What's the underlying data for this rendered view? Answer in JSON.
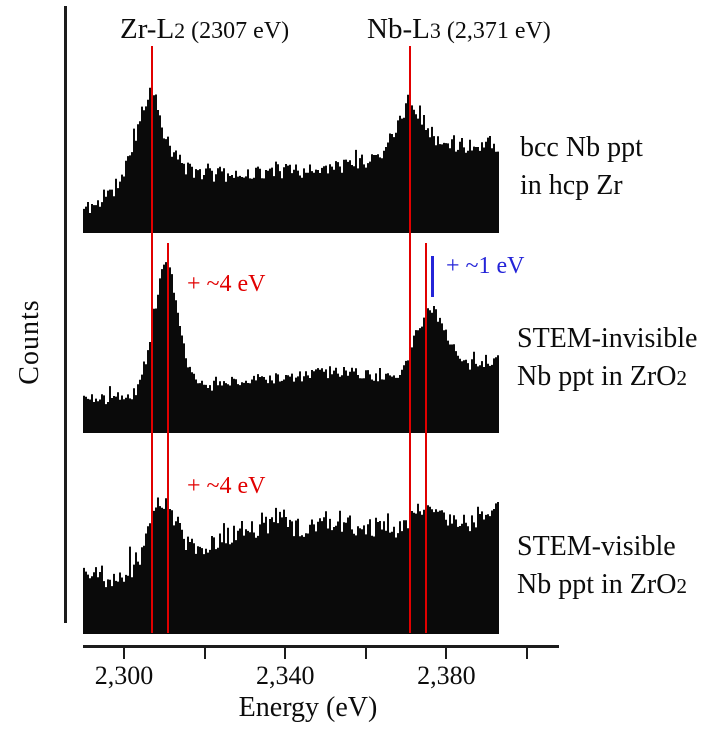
{
  "axis": {
    "y_label": "Counts",
    "x_label": "Energy (eV)"
  },
  "peak_titles": [
    {
      "main": "Zr-L",
      "sub": "2",
      "detail": " (2307 eV)"
    },
    {
      "main": "Nb-L",
      "sub": "3",
      "detail": " (2,371 eV)"
    }
  ],
  "panel_labels": [
    {
      "line1": "bcc Nb ppt",
      "line2": "in hcp Zr",
      "line2_sub": ""
    },
    {
      "line1": "STEM-invisible",
      "line2": "Nb ppt in ZrO",
      "line2_sub": "2"
    },
    {
      "line1": "STEM-visible",
      "line2": "Nb ppt in ZrO",
      "line2_sub": "2"
    }
  ],
  "annotations": [
    {
      "text": "+ ~4 eV",
      "color": "#e10000"
    },
    {
      "text": "+ ~1 eV",
      "color": "#2424d8"
    },
    {
      "text": "+ ~4 eV",
      "color": "#e10000"
    }
  ],
  "colors": {
    "spectrum_fill": "#0a0a0a",
    "reference_red": "#e10000",
    "annotation_blue": "#2424d8",
    "axis_black": "#1c1c1c"
  },
  "chart_data": {
    "type": "area",
    "title": "",
    "xlabel": "Energy (eV)",
    "ylabel": "Counts",
    "y_units": "arbitrary counts (unlabeled axis)",
    "x_range": [
      2290,
      2400
    ],
    "x_ticks": [
      2300,
      2320,
      2340,
      2360,
      2380,
      2400
    ],
    "x_tick_labels": [
      {
        "value": 2300,
        "label": "2,300"
      },
      {
        "value": 2340,
        "label": "2,340"
      },
      {
        "value": 2380,
        "label": "2,380"
      }
    ],
    "grid": false,
    "legend_position": "right-of-each-panel",
    "reference_lines": [
      {
        "id": "Zr-L2-reference",
        "energy_eV": 2307,
        "color": "#e10000",
        "extent": "full",
        "width": 2
      },
      {
        "id": "Zr-L2-shifted-4eV",
        "energy_eV": 2311,
        "color": "#e10000",
        "extent": "lower",
        "width": 2
      },
      {
        "id": "Nb-L3-reference",
        "energy_eV": 2371,
        "color": "#e10000",
        "extent": "full",
        "width": 2
      },
      {
        "id": "Nb-L3-shifted-4eV",
        "energy_eV": 2375,
        "color": "#e10000",
        "extent": "lower",
        "width": 2
      },
      {
        "id": "Nb-L3-observed-1eV",
        "energy_eV": 2376.5,
        "color": "#2424d8",
        "extent": "short",
        "width": 3
      }
    ],
    "series": [
      {
        "name": "bcc Nb ppt in hcp Zr",
        "peaks": [
          {
            "id": "Zr-L2",
            "eV": 2307
          },
          {
            "id": "Nb-L3",
            "eV": 2371
          }
        ],
        "noise_pct": 8,
        "seed": 11,
        "envelope_pct": [
          [
            2290,
            14
          ],
          [
            2292,
            16
          ],
          [
            2294,
            18
          ],
          [
            2296,
            21
          ],
          [
            2298,
            26
          ],
          [
            2300,
            34
          ],
          [
            2302,
            46
          ],
          [
            2304,
            63
          ],
          [
            2306,
            76
          ],
          [
            2307,
            83
          ],
          [
            2308,
            80
          ],
          [
            2309,
            70
          ],
          [
            2310,
            61
          ],
          [
            2312,
            49
          ],
          [
            2314,
            41
          ],
          [
            2316,
            37
          ],
          [
            2320,
            35
          ],
          [
            2326,
            34
          ],
          [
            2332,
            35
          ],
          [
            2338,
            36
          ],
          [
            2344,
            36
          ],
          [
            2350,
            37
          ],
          [
            2355,
            39
          ],
          [
            2360,
            42
          ],
          [
            2364,
            46
          ],
          [
            2367,
            54
          ],
          [
            2369,
            65
          ],
          [
            2371,
            79
          ],
          [
            2373,
            71
          ],
          [
            2375,
            65
          ],
          [
            2377,
            57
          ],
          [
            2379,
            52
          ],
          [
            2381,
            50
          ],
          [
            2384,
            51
          ],
          [
            2387,
            51
          ],
          [
            2390,
            52
          ],
          [
            2393,
            50
          ]
        ]
      },
      {
        "name": "STEM-invisible Nb ppt in ZrO2",
        "peaks": [
          {
            "id": "Zr-L2 shifted",
            "eV": 2311
          },
          {
            "id": "Nb-L3 shifted",
            "eV": 2376.5
          }
        ],
        "noise_pct": 6,
        "seed": 7,
        "envelope_pct": [
          [
            2290,
            18
          ],
          [
            2292,
            21
          ],
          [
            2294,
            19
          ],
          [
            2296,
            19
          ],
          [
            2298,
            20
          ],
          [
            2300,
            20
          ],
          [
            2302,
            21
          ],
          [
            2304,
            25
          ],
          [
            2306,
            39
          ],
          [
            2308,
            67
          ],
          [
            2310,
            92
          ],
          [
            2311,
            96
          ],
          [
            2312,
            88
          ],
          [
            2313,
            75
          ],
          [
            2314,
            61
          ],
          [
            2316,
            39
          ],
          [
            2318,
            29
          ],
          [
            2320,
            27
          ],
          [
            2325,
            28
          ],
          [
            2330,
            29
          ],
          [
            2335,
            31
          ],
          [
            2340,
            31
          ],
          [
            2345,
            32
          ],
          [
            2350,
            34
          ],
          [
            2355,
            34
          ],
          [
            2360,
            33
          ],
          [
            2364,
            32
          ],
          [
            2367,
            31
          ],
          [
            2369,
            33
          ],
          [
            2371,
            42
          ],
          [
            2373,
            56
          ],
          [
            2375,
            66
          ],
          [
            2377,
            70
          ],
          [
            2378,
            67
          ],
          [
            2380,
            58
          ],
          [
            2382,
            49
          ],
          [
            2384,
            40
          ],
          [
            2386,
            38
          ],
          [
            2388,
            39
          ],
          [
            2390,
            40
          ],
          [
            2392,
            42
          ]
        ]
      },
      {
        "name": "STEM-visible Nb ppt in ZrO2",
        "peaks": [
          {
            "id": "Zr-L2 shifted",
            "eV": 2311
          },
          {
            "id": "Nb-L3",
            "eV": 2372
          }
        ],
        "noise_pct": 13,
        "seed": 2024,
        "envelope_pct": [
          [
            2290,
            41
          ],
          [
            2294,
            40
          ],
          [
            2298,
            39
          ],
          [
            2300,
            40
          ],
          [
            2302,
            43
          ],
          [
            2304,
            52
          ],
          [
            2306,
            67
          ],
          [
            2308,
            83
          ],
          [
            2310,
            91
          ],
          [
            2312,
            85
          ],
          [
            2314,
            73
          ],
          [
            2316,
            63
          ],
          [
            2318,
            59
          ],
          [
            2320,
            57
          ],
          [
            2324,
            63
          ],
          [
            2328,
            67
          ],
          [
            2332,
            70
          ],
          [
            2336,
            73
          ],
          [
            2340,
            79
          ],
          [
            2344,
            70
          ],
          [
            2348,
            73
          ],
          [
            2352,
            72
          ],
          [
            2356,
            75
          ],
          [
            2360,
            73
          ],
          [
            2364,
            72
          ],
          [
            2368,
            70
          ],
          [
            2370,
            75
          ],
          [
            2372,
            83
          ],
          [
            2374,
            85
          ],
          [
            2376,
            80
          ],
          [
            2378,
            77
          ],
          [
            2380,
            79
          ],
          [
            2382,
            75
          ],
          [
            2384,
            79
          ],
          [
            2386,
            73
          ],
          [
            2388,
            80
          ],
          [
            2390,
            77
          ],
          [
            2392,
            83
          ]
        ]
      }
    ]
  }
}
